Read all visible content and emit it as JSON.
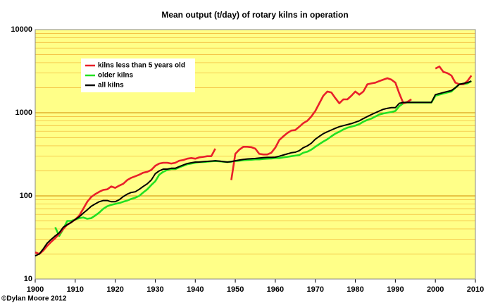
{
  "chart_data": {
    "type": "line",
    "title": "Mean output (t/day) of rotary kilns in operation",
    "footer": "©Dylan Moore 2012",
    "log_y": true,
    "grid": true,
    "legend": "top-left",
    "xlim": [
      1900,
      2010
    ],
    "xticks": [
      1900,
      1910,
      1920,
      1930,
      1940,
      1950,
      1960,
      1970,
      1980,
      1990,
      2000,
      2010
    ],
    "ylim": [
      10,
      10000
    ],
    "yticks": [
      10,
      100,
      1000,
      10000
    ],
    "x": [
      1900,
      1901,
      1902,
      1903,
      1904,
      1905,
      1906,
      1907,
      1908,
      1909,
      1910,
      1911,
      1912,
      1913,
      1914,
      1915,
      1916,
      1917,
      1918,
      1919,
      1920,
      1921,
      1922,
      1923,
      1924,
      1925,
      1926,
      1927,
      1928,
      1929,
      1930,
      1931,
      1932,
      1933,
      1934,
      1935,
      1936,
      1937,
      1938,
      1939,
      1940,
      1941,
      1942,
      1943,
      1944,
      1945,
      1946,
      1947,
      1948,
      1949,
      1950,
      1951,
      1952,
      1953,
      1954,
      1955,
      1956,
      1957,
      1958,
      1959,
      1960,
      1961,
      1962,
      1963,
      1964,
      1965,
      1966,
      1967,
      1968,
      1969,
      1970,
      1971,
      1972,
      1973,
      1974,
      1975,
      1976,
      1977,
      1978,
      1979,
      1980,
      1981,
      1982,
      1983,
      1984,
      1985,
      1986,
      1987,
      1988,
      1989,
      1990,
      1991,
      1992,
      1993,
      1994,
      1995,
      1996,
      1997,
      1998,
      1999,
      2000,
      2001,
      2002,
      2003,
      2004,
      2005,
      2006,
      2007,
      2008,
      2009
    ],
    "series": [
      {
        "name": "kilns less than 5 years old",
        "color": "#e8202a",
        "values": [
          21,
          20,
          22,
          25,
          28,
          31,
          35,
          40,
          45,
          48,
          52,
          58,
          70,
          85,
          97,
          105,
          112,
          118,
          120,
          130,
          125,
          133,
          140,
          155,
          165,
          172,
          180,
          190,
          195,
          205,
          230,
          245,
          250,
          250,
          245,
          250,
          265,
          270,
          280,
          285,
          280,
          290,
          295,
          300,
          300,
          370,
          null,
          null,
          null,
          155,
          320,
          360,
          390,
          390,
          385,
          370,
          320,
          315,
          315,
          330,
          380,
          470,
          520,
          570,
          610,
          620,
          680,
          750,
          800,
          900,
          1050,
          1300,
          1600,
          1800,
          1750,
          1500,
          1300,
          1450,
          1450,
          1600,
          1800,
          1650,
          1800,
          2200,
          2250,
          2300,
          2400,
          2500,
          2600,
          2500,
          2300,
          1700,
          1300,
          1350,
          1450,
          null,
          null,
          null,
          null,
          null,
          3400,
          3600,
          3100,
          3000,
          2800,
          2300,
          2200,
          2200,
          2400,
          2800
        ]
      },
      {
        "name": "older kilns",
        "color": "#22e022",
        "values": [
          null,
          null,
          null,
          null,
          null,
          42,
          33,
          40,
          50,
          50,
          52,
          54,
          55,
          53,
          54,
          58,
          63,
          70,
          75,
          78,
          80,
          82,
          85,
          88,
          92,
          95,
          100,
          110,
          120,
          135,
          150,
          180,
          195,
          205,
          210,
          210,
          220,
          230,
          240,
          245,
          250,
          255,
          255,
          258,
          260,
          262,
          260,
          258,
          255,
          258,
          262,
          265,
          268,
          270,
          272,
          275,
          275,
          278,
          280,
          282,
          285,
          285,
          290,
          295,
          300,
          305,
          310,
          330,
          340,
          360,
          390,
          420,
          450,
          480,
          520,
          560,
          590,
          630,
          660,
          680,
          700,
          730,
          780,
          820,
          850,
          900,
          950,
          980,
          1000,
          1020,
          1050,
          1200,
          1300,
          1330,
          1330,
          1330,
          1330,
          1330,
          1330,
          1330,
          1600,
          1650,
          1700,
          1750,
          1800,
          2000,
          2200,
          2200,
          2250,
          2400
        ]
      },
      {
        "name": "all kilns",
        "color": "#000000",
        "values": [
          19,
          20,
          23,
          27,
          30,
          33,
          36,
          42,
          45,
          48,
          52,
          56,
          62,
          68,
          75,
          80,
          85,
          88,
          88,
          85,
          85,
          90,
          98,
          105,
          110,
          112,
          120,
          130,
          140,
          155,
          185,
          200,
          210,
          210,
          215,
          215,
          225,
          235,
          245,
          250,
          255,
          255,
          258,
          260,
          262,
          265,
          262,
          258,
          255,
          258,
          265,
          270,
          275,
          278,
          280,
          282,
          285,
          288,
          290,
          290,
          292,
          300,
          310,
          320,
          330,
          335,
          350,
          380,
          400,
          430,
          480,
          520,
          560,
          590,
          620,
          650,
          680,
          700,
          720,
          740,
          770,
          800,
          850,
          900,
          950,
          1000,
          1050,
          1100,
          1130,
          1150,
          1150,
          1300,
          1330,
          1330,
          1330,
          1330,
          1330,
          1330,
          1330,
          1330,
          1650,
          1700,
          1750,
          1800,
          1850,
          2000,
          2200,
          2250,
          2300,
          2400
        ]
      }
    ]
  }
}
